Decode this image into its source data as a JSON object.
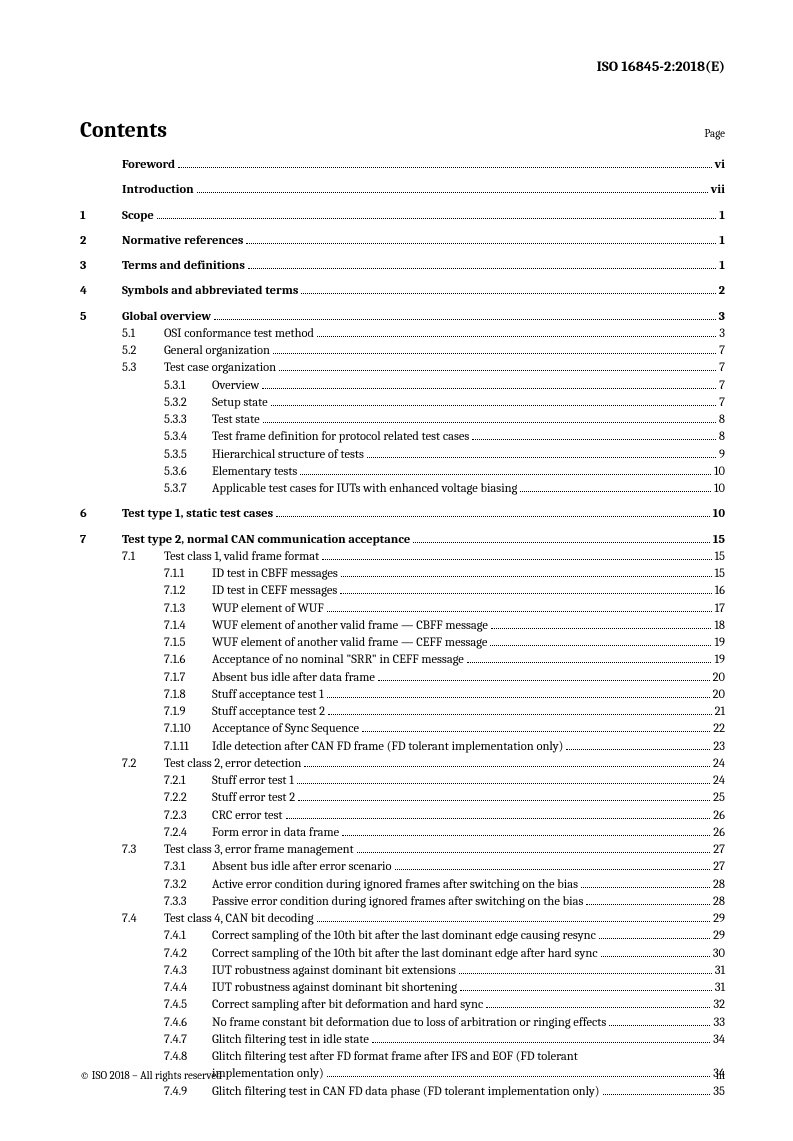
{
  "doc_id": "ISO 16845-2:2018(E)",
  "contents_title": "Contents",
  "page_label": "Page",
  "footer_left": "© ISO 2018 – All rights reserved",
  "footer_right": "iii",
  "entries": [
    {
      "level": 0,
      "num": "",
      "title": "Foreword",
      "page": "vi",
      "bold": true,
      "spaced": true
    },
    {
      "level": 0,
      "num": "",
      "title": "Introduction",
      "page": "vii",
      "bold": true,
      "spaced": true
    },
    {
      "level": 0,
      "num": "1",
      "title": "Scope",
      "page": "1",
      "bold": true,
      "spaced": true
    },
    {
      "level": 0,
      "num": "2",
      "title": "Normative references",
      "page": "1",
      "bold": true,
      "spaced": true
    },
    {
      "level": 0,
      "num": "3",
      "title": "Terms and definitions",
      "page": "1",
      "bold": true,
      "spaced": true
    },
    {
      "level": 0,
      "num": "4",
      "title": "Symbols and abbreviated terms",
      "page": "2",
      "bold": true,
      "spaced": true
    },
    {
      "level": 0,
      "num": "5",
      "title": "Global overview",
      "page": "3",
      "bold": true,
      "spaced": true
    },
    {
      "level": 1,
      "num": "5.1",
      "title": "OSI conformance test method",
      "page": "3"
    },
    {
      "level": 1,
      "num": "5.2",
      "title": "General organization",
      "page": "7"
    },
    {
      "level": 1,
      "num": "5.3",
      "title": "Test case organization",
      "page": "7"
    },
    {
      "level": 2,
      "num": "5.3.1",
      "title": "Overview",
      "page": "7"
    },
    {
      "level": 2,
      "num": "5.3.2",
      "title": "Setup state",
      "page": "7"
    },
    {
      "level": 2,
      "num": "5.3.3",
      "title": "Test state",
      "page": "8"
    },
    {
      "level": 2,
      "num": "5.3.4",
      "title": "Test frame definition for protocol related test cases",
      "page": "8"
    },
    {
      "level": 2,
      "num": "5.3.5",
      "title": "Hierarchical structure of tests",
      "page": "9"
    },
    {
      "level": 2,
      "num": "5.3.6",
      "title": "Elementary tests",
      "page": "10"
    },
    {
      "level": 2,
      "num": "5.3.7",
      "title": "Applicable test cases for IUTs with enhanced voltage biasing",
      "page": "10"
    },
    {
      "level": 0,
      "num": "6",
      "title": "Test type 1, static test cases",
      "page": "10",
      "bold": true,
      "spaced": true
    },
    {
      "level": 0,
      "num": "7",
      "title": "Test type 2, normal CAN communication acceptance",
      "page": "15",
      "bold": true,
      "spaced": true
    },
    {
      "level": 1,
      "num": "7.1",
      "title": "Test class 1, valid frame format",
      "page": "15"
    },
    {
      "level": 2,
      "num": "7.1.1",
      "title": "ID test in CBFF messages",
      "page": "15"
    },
    {
      "level": 2,
      "num": "7.1.2",
      "title": "ID test in CEFF messages",
      "page": "16"
    },
    {
      "level": 2,
      "num": "7.1.3",
      "title": "WUP element of WUF",
      "page": "17"
    },
    {
      "level": 2,
      "num": "7.1.4",
      "title": "WUF element of another valid frame — CBFF message",
      "page": "18"
    },
    {
      "level": 2,
      "num": "7.1.5",
      "title": "WUF element of another valid frame — CEFF message",
      "page": "19"
    },
    {
      "level": 2,
      "num": "7.1.6",
      "title": "Acceptance of no nominal \"SRR\" in CEFF message",
      "page": "19"
    },
    {
      "level": 2,
      "num": "7.1.7",
      "title": "Absent bus idle after data frame",
      "page": "20"
    },
    {
      "level": 2,
      "num": "7.1.8",
      "title": "Stuff acceptance test 1",
      "page": "20"
    },
    {
      "level": 2,
      "num": "7.1.9",
      "title": "Stuff acceptance test 2",
      "page": "21"
    },
    {
      "level": 2,
      "num": "7.1.10",
      "title": "Acceptance of Sync Sequence",
      "page": "22"
    },
    {
      "level": 2,
      "num": "7.1.11",
      "title": "Idle detection after CAN FD frame (FD tolerant implementation only)",
      "page": "23"
    },
    {
      "level": 1,
      "num": "7.2",
      "title": "Test class 2, error detection",
      "page": "24"
    },
    {
      "level": 2,
      "num": "7.2.1",
      "title": "Stuff error test 1",
      "page": "24"
    },
    {
      "level": 2,
      "num": "7.2.2",
      "title": "Stuff error test 2",
      "page": "25"
    },
    {
      "level": 2,
      "num": "7.2.3",
      "title": "CRC error test",
      "page": "26"
    },
    {
      "level": 2,
      "num": "7.2.4",
      "title": "Form error in data frame",
      "page": "26"
    },
    {
      "level": 1,
      "num": "7.3",
      "title": "Test class 3, error frame management",
      "page": "27"
    },
    {
      "level": 2,
      "num": "7.3.1",
      "title": "Absent bus idle after error scenario",
      "page": "27"
    },
    {
      "level": 2,
      "num": "7.3.2",
      "title": "Active error condition during ignored frames after switching on the bias",
      "page": "28"
    },
    {
      "level": 2,
      "num": "7.3.3",
      "title": "Passive error condition during ignored frames after switching on the bias",
      "page": "28"
    },
    {
      "level": 1,
      "num": "7.4",
      "title": "Test class 4, CAN bit decoding",
      "page": "29"
    },
    {
      "level": 2,
      "num": "7.4.1",
      "title": "Correct sampling of the 10th bit after the last dominant edge causing resync",
      "page": "29"
    },
    {
      "level": 2,
      "num": "7.4.2",
      "title": "Correct sampling of the 10th bit after the last dominant edge after hard sync",
      "page": "30"
    },
    {
      "level": 2,
      "num": "7.4.3",
      "title": "IUT robustness against dominant bit extensions",
      "page": "31"
    },
    {
      "level": 2,
      "num": "7.4.4",
      "title": "IUT robustness against dominant bit shortening",
      "page": "31"
    },
    {
      "level": 2,
      "num": "7.4.5",
      "title": "Correct sampling after bit deformation and hard sync",
      "page": "32"
    },
    {
      "level": 2,
      "num": "7.4.6",
      "title": "No frame constant bit deformation due to loss of arbitration or ringing effects",
      "page": "33"
    },
    {
      "level": 2,
      "num": "7.4.7",
      "title": "Glitch filtering test in idle state",
      "page": "34"
    },
    {
      "level": 2,
      "num": "7.4.8",
      "title": "Glitch filtering test after FD format frame after IFS and EOF (FD tolerant",
      "page": "",
      "nowrap_leader": true
    },
    {
      "level": 3,
      "num": "",
      "title": "implementation only)",
      "page": "34"
    },
    {
      "level": 2,
      "num": "7.4.9",
      "title": "Glitch filtering test in CAN FD data phase (FD tolerant implementation only)",
      "page": "35"
    }
  ]
}
